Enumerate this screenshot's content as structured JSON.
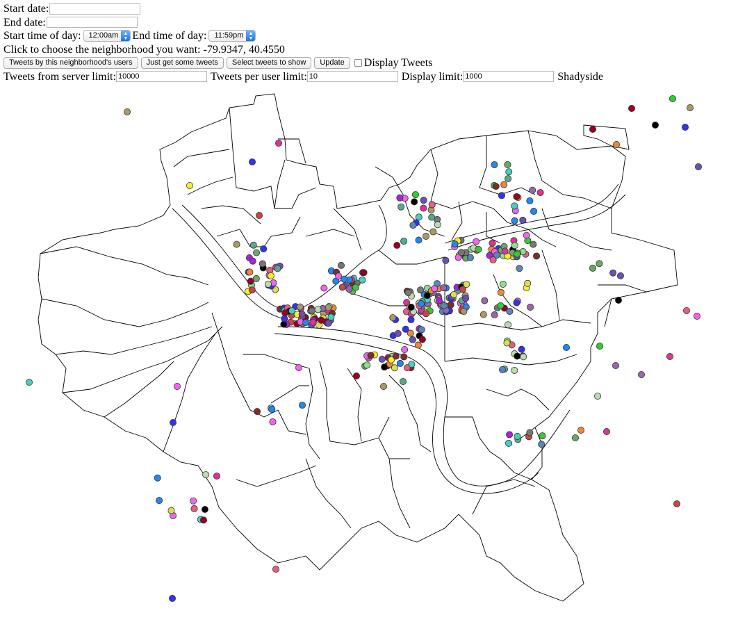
{
  "form": {
    "start_date_label": "Start date:",
    "start_date_value": "",
    "end_date_label": "End date:",
    "end_date_value": "",
    "start_time_label": "Start time of day:",
    "start_time_value": "12:00am",
    "end_time_label": "End time of day:",
    "end_time_value": "11:59pm",
    "choose_label": "Click to choose the neighborhood you want:",
    "coordinates": "-79.9347, 40.4550",
    "buttons": {
      "by_users": "Tweets by this neighborhood's users",
      "get_some": "Just get some tweets",
      "select_show": "Select tweets to show",
      "update": "Update"
    },
    "display_tweets_label": "Display Tweets",
    "display_tweets_checked": false,
    "server_limit_label": "Tweets from server limit:",
    "server_limit_value": "10000",
    "user_limit_label": "Tweets per user limit:",
    "user_limit_value": "10",
    "display_limit_label": "Display limit:",
    "display_limit_value": "1000",
    "selected_neighborhood": "Shadyside"
  },
  "map": {
    "stroke_color": "#000000",
    "point_stroke": "#333333",
    "palette": [
      "#3333ee",
      "#7a2e2e",
      "#33cc33",
      "#b8dcb0",
      "#6a4fb8",
      "#dd3399",
      "#e85e80",
      "#8ce08c",
      "#55aa88",
      "#ee8833",
      "#2288ee",
      "#ffee22",
      "#aa22dd",
      "#777777",
      "#44d0c0",
      "#ee66ee",
      "#aa9966",
      "#990022",
      "#dddd55",
      "#000000",
      "#66aa66",
      "#5588bb",
      "#9966aa",
      "#cc4444"
    ]
  }
}
